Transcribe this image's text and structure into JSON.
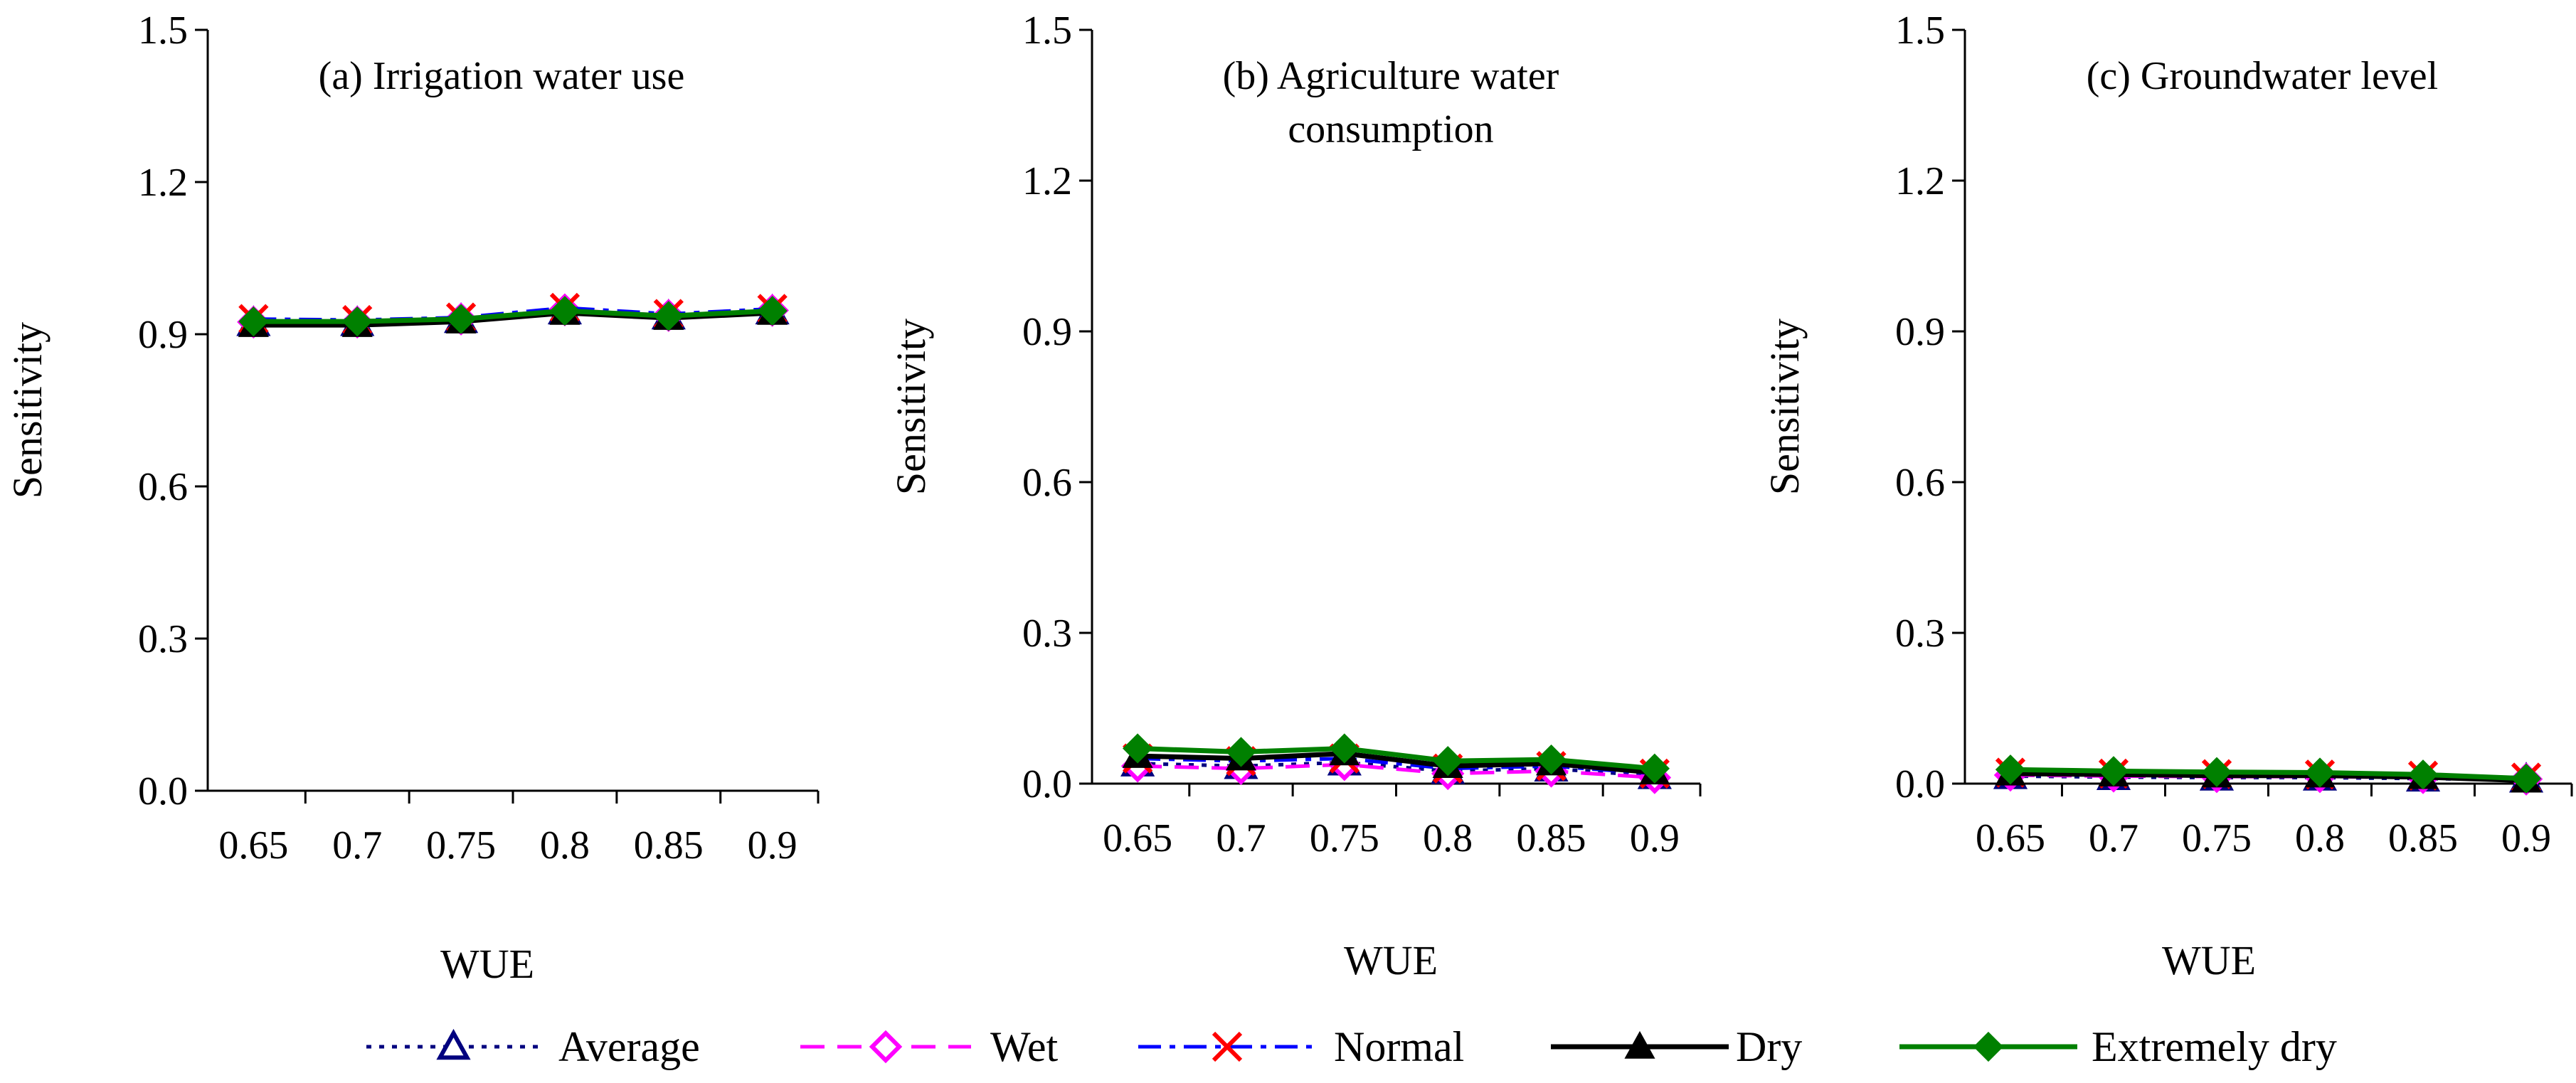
{
  "chart_data": [
    {
      "type": "line",
      "title": "(a) Irrigation water use",
      "xlabel": "WUE",
      "ylabel": "Sensitivity",
      "categories": [
        "0.65",
        "0.7",
        "0.75",
        "0.8",
        "0.85",
        "0.9"
      ],
      "ylim": [
        0,
        1.5
      ],
      "yticks": [
        "0.0",
        "0.3",
        "0.6",
        "0.9",
        "1.2",
        "1.5"
      ],
      "series": [
        {
          "name": "Average",
          "values": [
            0.922,
            0.922,
            0.928,
            0.945,
            0.935,
            0.945
          ]
        },
        {
          "name": "Wet",
          "values": [
            0.924,
            0.924,
            0.93,
            0.948,
            0.937,
            0.947
          ]
        },
        {
          "name": "Normal",
          "values": [
            0.93,
            0.928,
            0.933,
            0.952,
            0.94,
            0.95
          ]
        },
        {
          "name": "Dry",
          "values": [
            0.918,
            0.918,
            0.925,
            0.942,
            0.932,
            0.942
          ]
        },
        {
          "name": "Extremely dry",
          "values": [
            0.925,
            0.925,
            0.93,
            0.946,
            0.936,
            0.946
          ]
        }
      ]
    },
    {
      "type": "line",
      "title": "(b) Agriculture water consumption",
      "title_lines": [
        "(b) Agriculture water",
        "consumption"
      ],
      "xlabel": "WUE",
      "ylabel": "Sensitivity",
      "categories": [
        "0.65",
        "0.7",
        "0.75",
        "0.8",
        "0.85",
        "0.9"
      ],
      "ylim": [
        0,
        1.5
      ],
      "yticks": [
        "0.0",
        "0.3",
        "0.6",
        "0.9",
        "1.2",
        "1.5"
      ],
      "series": [
        {
          "name": "Average",
          "values": [
            0.04,
            0.035,
            0.042,
            0.025,
            0.03,
            0.015
          ]
        },
        {
          "name": "Wet",
          "values": [
            0.035,
            0.03,
            0.038,
            0.02,
            0.025,
            0.012
          ]
        },
        {
          "name": "Normal",
          "values": [
            0.05,
            0.045,
            0.05,
            0.03,
            0.035,
            0.02
          ]
        },
        {
          "name": "Dry",
          "values": [
            0.055,
            0.05,
            0.06,
            0.035,
            0.04,
            0.022
          ]
        },
        {
          "name": "Extremely dry",
          "values": [
            0.07,
            0.063,
            0.07,
            0.045,
            0.048,
            0.03
          ]
        }
      ]
    },
    {
      "type": "line",
      "title": "(c) Groundwater level",
      "xlabel": "WUE",
      "ylabel": "Sensitivity",
      "categories": [
        "0.65",
        "0.7",
        "0.75",
        "0.8",
        "0.85",
        "0.9"
      ],
      "ylim": [
        0,
        1.5
      ],
      "yticks": [
        "0.0",
        "0.3",
        "0.6",
        "0.9",
        "1.2",
        "1.5"
      ],
      "series": [
        {
          "name": "Average",
          "values": [
            0.015,
            0.013,
            0.012,
            0.012,
            0.01,
            0.008
          ]
        },
        {
          "name": "Wet",
          "values": [
            0.017,
            0.015,
            0.014,
            0.014,
            0.012,
            0.009
          ]
        },
        {
          "name": "Normal",
          "values": [
            0.022,
            0.02,
            0.019,
            0.018,
            0.016,
            0.012
          ]
        },
        {
          "name": "Dry",
          "values": [
            0.02,
            0.018,
            0.016,
            0.016,
            0.013,
            0.006
          ]
        },
        {
          "name": "Extremely dry",
          "values": [
            0.028,
            0.025,
            0.023,
            0.022,
            0.018,
            0.01
          ]
        }
      ]
    }
  ],
  "legend": [
    {
      "name": "Average",
      "color": "#00007f",
      "marker": "open-triangle",
      "dash": "dotted"
    },
    {
      "name": "Wet",
      "color": "#ff00ff",
      "marker": "open-diamond",
      "dash": "dashed"
    },
    {
      "name": "Normal",
      "color": "#0000ff",
      "marker": "x-cross",
      "marker_color": "#ff0000",
      "dash": "dash-dot"
    },
    {
      "name": "Dry",
      "color": "#000000",
      "marker": "filled-triangle",
      "dash": "solid"
    },
    {
      "name": "Extremely dry",
      "color": "#008000",
      "marker": "filled-diamond",
      "dash": "solid"
    }
  ]
}
